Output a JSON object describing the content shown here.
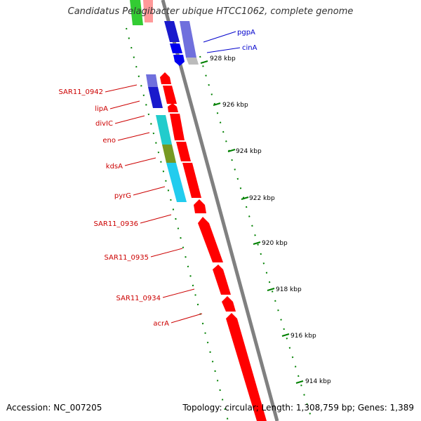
{
  "title": "Candidatus Pelagibacter ubique HTCC1062, complete genome",
  "footer": {
    "accession": "Accession: NC_007205",
    "summary": "Topology: circular; Length: 1,308,759 bp; Genes: 1,389"
  },
  "colors": {
    "forward": "#ff0000",
    "reverse": "#0000ff",
    "backbone": "#808080",
    "ruler": "#008000",
    "label_red": "#cc0000",
    "label_blue": "#0000cc"
  },
  "ruler_labels": [
    "928 kbp",
    "926 kbp",
    "924 kbp",
    "922 kbp",
    "920 kbp",
    "918 kbp",
    "916 kbp",
    "914 kbp"
  ],
  "gene_labels": [
    {
      "text": "pgpA",
      "strand": "reverse"
    },
    {
      "text": "cinA",
      "strand": "reverse"
    },
    {
      "text": "SAR11_0942",
      "strand": "forward"
    },
    {
      "text": "lipA",
      "strand": "forward"
    },
    {
      "text": "divIC",
      "strand": "forward"
    },
    {
      "text": "eno",
      "strand": "forward"
    },
    {
      "text": "kdsA",
      "strand": "forward"
    },
    {
      "text": "pyrG",
      "strand": "forward"
    },
    {
      "text": "SAR11_0936",
      "strand": "forward"
    },
    {
      "text": "SAR11_0935",
      "strand": "forward"
    },
    {
      "text": "SAR11_0934",
      "strand": "forward"
    },
    {
      "text": "acrA",
      "strand": "forward"
    }
  ]
}
